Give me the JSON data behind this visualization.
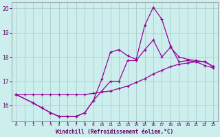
{
  "title": "",
  "xlabel": "Windchill (Refroidissement éolien,°C)",
  "background_color": "#cceeed",
  "grid_color": "#aacccc",
  "line_color": "#990099",
  "xlim": [
    -0.5,
    23.5
  ],
  "ylim": [
    15.35,
    20.25
  ],
  "yticks": [
    16,
    17,
    18,
    19,
    20
  ],
  "xticks": [
    0,
    1,
    2,
    3,
    4,
    5,
    6,
    7,
    8,
    9,
    10,
    11,
    12,
    13,
    14,
    15,
    16,
    17,
    18,
    19,
    20,
    21,
    22,
    23
  ],
  "line1_x": [
    0,
    1,
    2,
    3,
    4,
    5,
    6,
    7,
    8,
    9,
    10,
    11,
    12,
    13,
    14,
    15,
    16,
    17,
    18,
    19,
    20,
    21,
    22,
    23
  ],
  "line1_y": [
    16.45,
    16.45,
    16.45,
    16.45,
    16.45,
    16.45,
    16.45,
    16.45,
    16.45,
    16.5,
    16.55,
    16.6,
    16.7,
    16.8,
    16.95,
    17.1,
    17.3,
    17.45,
    17.6,
    17.7,
    17.75,
    17.8,
    17.82,
    17.6
  ],
  "line2_x": [
    0,
    2,
    3,
    4,
    5,
    6,
    7,
    8,
    9,
    10,
    11,
    12,
    13,
    14,
    15,
    16,
    17,
    18,
    19,
    20,
    21,
    22,
    23
  ],
  "line2_y": [
    16.45,
    16.1,
    15.9,
    15.7,
    15.55,
    15.55,
    15.55,
    15.7,
    16.2,
    16.6,
    17.0,
    17.0,
    17.85,
    17.85,
    18.3,
    18.7,
    18.0,
    18.4,
    18.0,
    17.9,
    17.85,
    17.8,
    17.6
  ],
  "line3_x": [
    0,
    2,
    3,
    4,
    5,
    6,
    7,
    8,
    9,
    10,
    11,
    12,
    13,
    14,
    15,
    16,
    17,
    18,
    19,
    20,
    21,
    22,
    23
  ],
  "line3_y": [
    16.45,
    16.1,
    15.9,
    15.7,
    15.55,
    15.55,
    15.55,
    15.7,
    16.2,
    17.1,
    18.2,
    18.3,
    18.05,
    17.9,
    19.3,
    20.05,
    19.55,
    18.45,
    17.8,
    17.85,
    17.8,
    17.65,
    17.55
  ]
}
